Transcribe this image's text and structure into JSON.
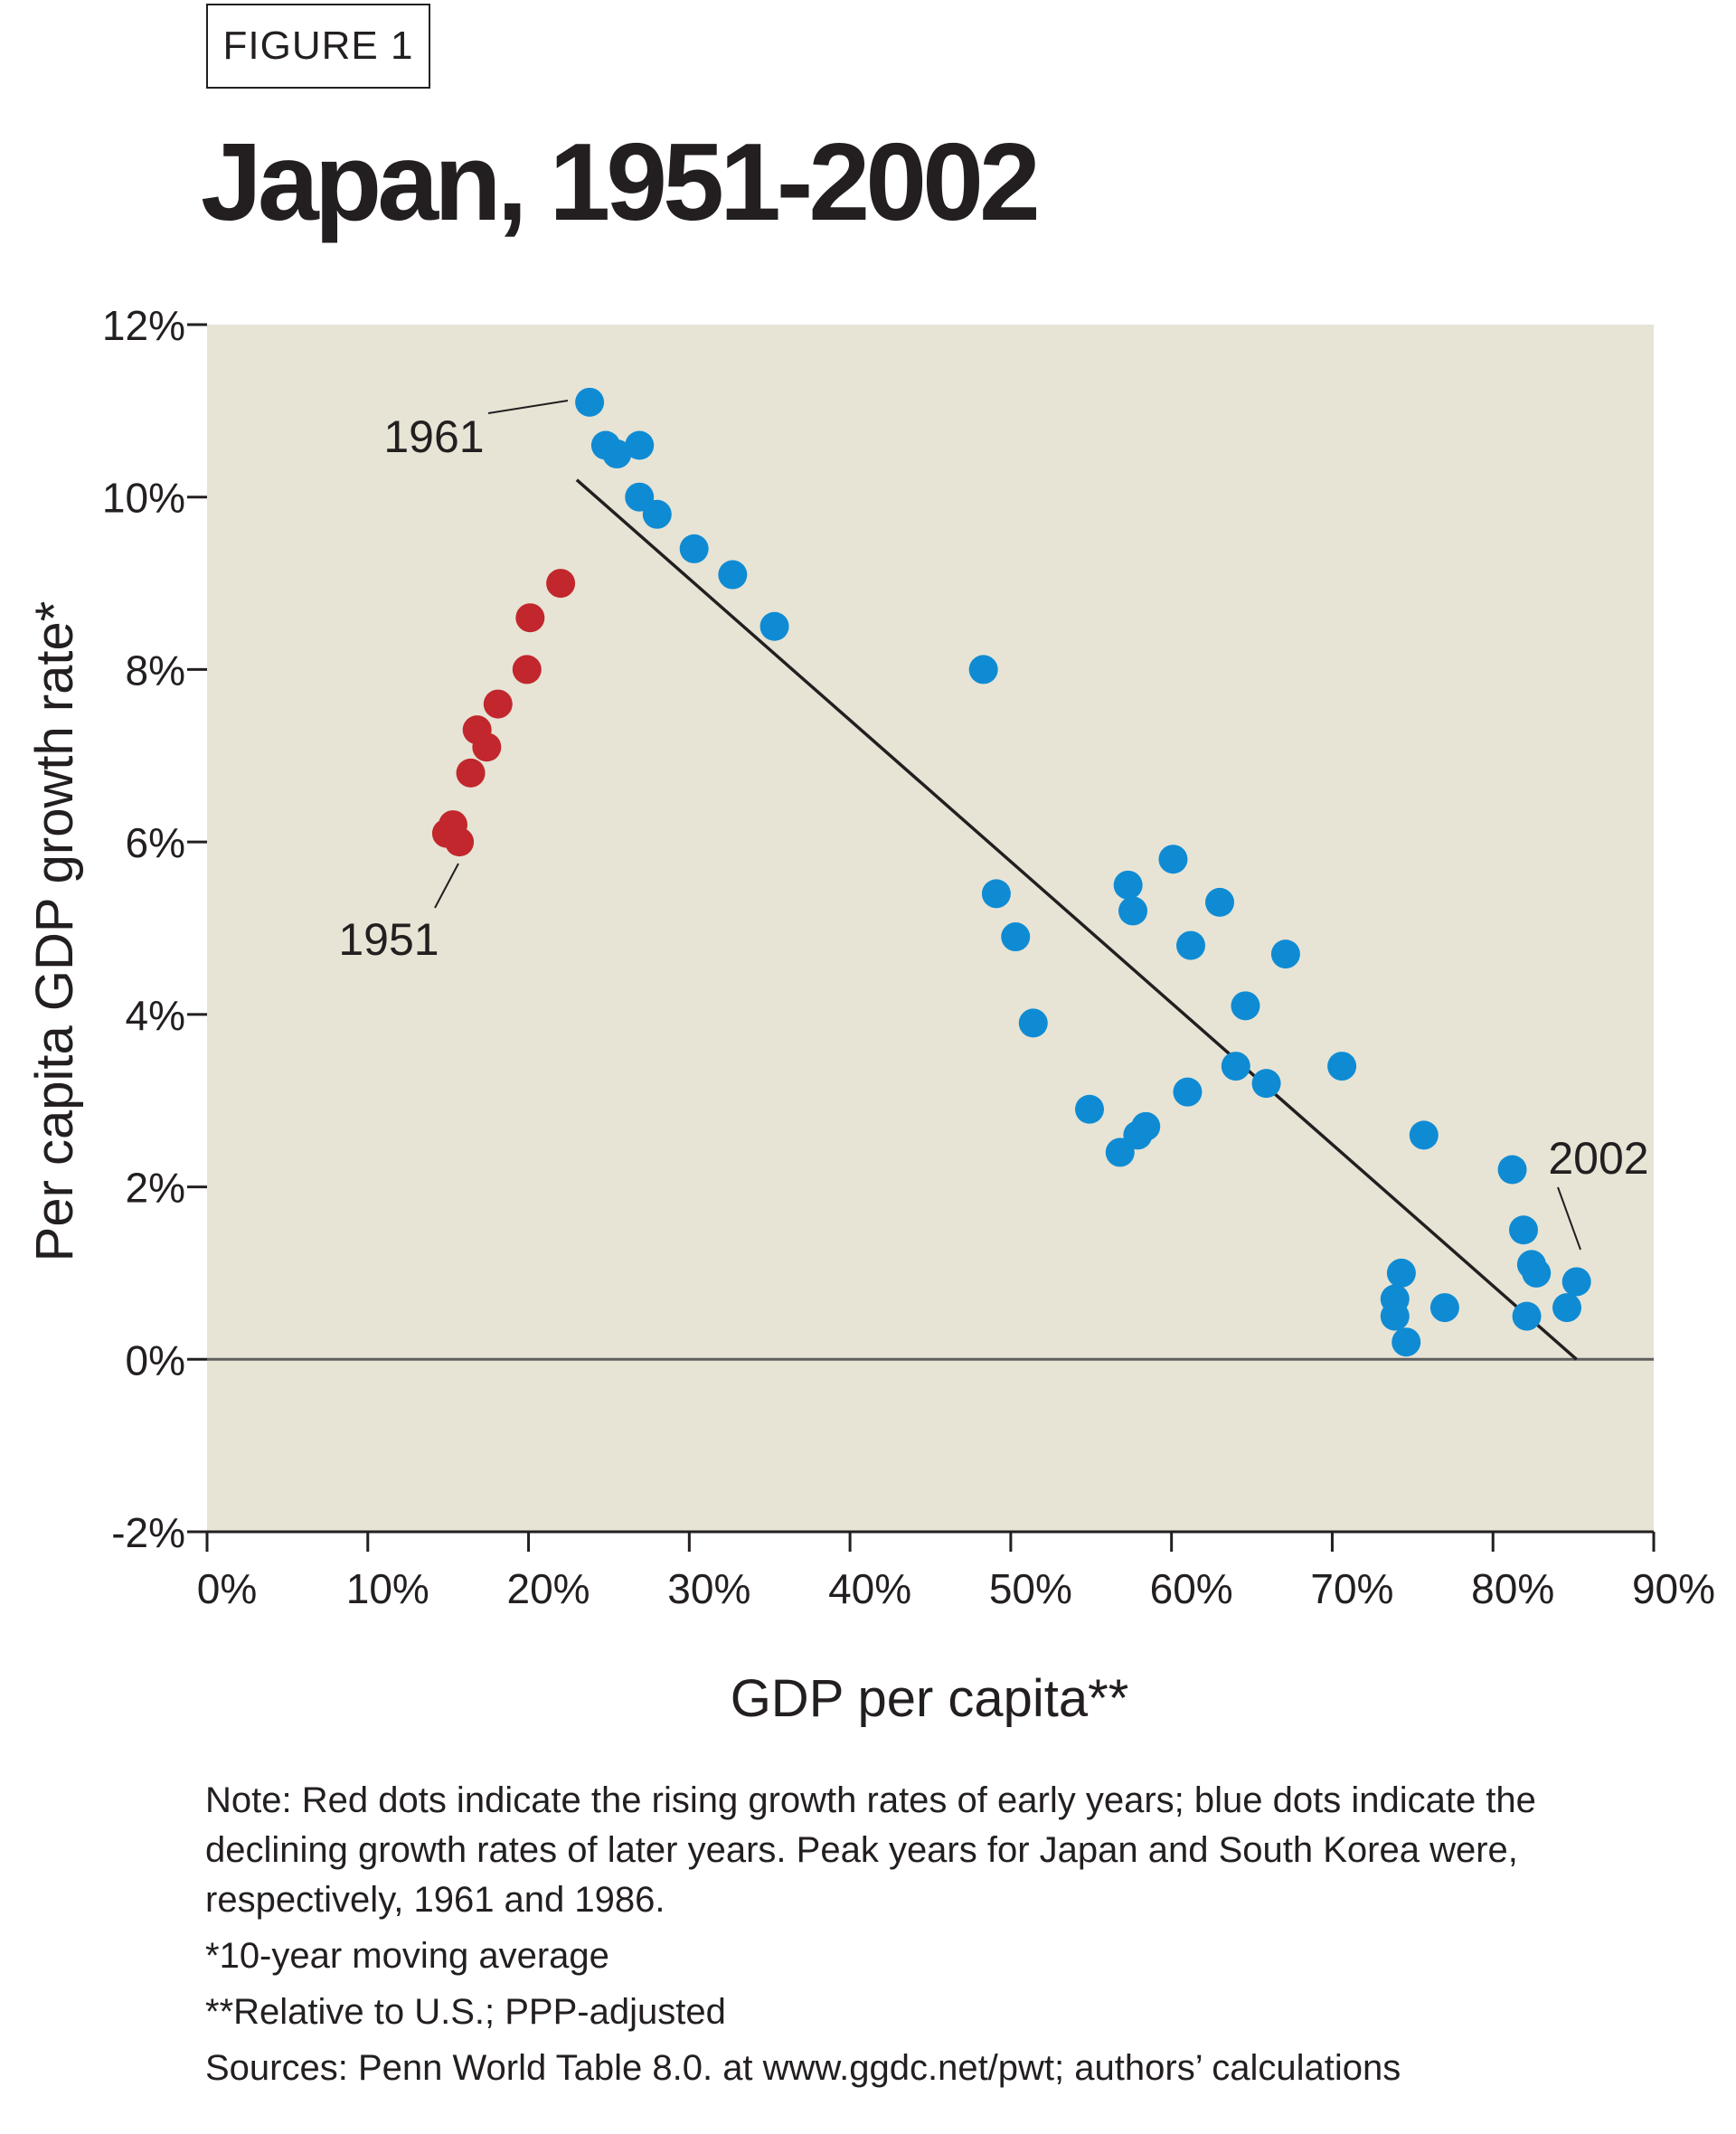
{
  "figure_label": "FIGURE 1",
  "chart_data": {
    "type": "scatter",
    "title": "Japan, 1951-2002",
    "xlabel": "GDP per capita**",
    "ylabel": "Per capita GDP growth rate*",
    "xlim": [
      0,
      90
    ],
    "ylim": [
      -2,
      12
    ],
    "x_ticks": [
      "0%",
      "10%",
      "20%",
      "30%",
      "40%",
      "50%",
      "60%",
      "70%",
      "80%",
      "90%"
    ],
    "y_ticks": [
      "-2%",
      "0%",
      "2%",
      "4%",
      "6%",
      "8%",
      "10%",
      "12%"
    ],
    "grid": false,
    "series": [
      {
        "color": "#c1272d",
        "points": [
          [
            14.9,
            6.1
          ],
          [
            15.3,
            6.2
          ],
          [
            15.7,
            6.0
          ],
          [
            16.4,
            6.8
          ],
          [
            16.8,
            7.3
          ],
          [
            17.4,
            7.1
          ],
          [
            18.1,
            7.6
          ],
          [
            19.9,
            8.0
          ],
          [
            20.1,
            8.6
          ],
          [
            22.0,
            9.0
          ]
        ]
      },
      {
        "color": "#0f8bd4",
        "points": [
          [
            23.8,
            11.1
          ],
          [
            24.8,
            10.6
          ],
          [
            25.5,
            10.5
          ],
          [
            26.9,
            10.6
          ],
          [
            26.9,
            10.0
          ],
          [
            28.0,
            9.8
          ],
          [
            30.3,
            9.4
          ],
          [
            32.7,
            9.1
          ],
          [
            35.3,
            8.5
          ],
          [
            48.3,
            8.0
          ],
          [
            49.1,
            5.4
          ],
          [
            50.3,
            4.9
          ],
          [
            51.4,
            3.9
          ],
          [
            54.9,
            2.9
          ],
          [
            56.8,
            2.4
          ],
          [
            57.3,
            5.5
          ],
          [
            57.6,
            5.2
          ],
          [
            57.9,
            2.6
          ],
          [
            58.4,
            2.7
          ],
          [
            60.1,
            5.8
          ],
          [
            61.0,
            3.1
          ],
          [
            61.2,
            4.8
          ],
          [
            63.0,
            5.3
          ],
          [
            64.0,
            3.4
          ],
          [
            64.6,
            4.1
          ],
          [
            65.9,
            3.2
          ],
          [
            67.1,
            4.7
          ],
          [
            70.6,
            3.4
          ],
          [
            73.9,
            0.7
          ],
          [
            73.9,
            0.5
          ],
          [
            74.3,
            1.0
          ],
          [
            74.6,
            0.2
          ],
          [
            75.7,
            2.6
          ],
          [
            77.0,
            0.6
          ],
          [
            81.2,
            2.2
          ],
          [
            81.9,
            1.5
          ],
          [
            82.1,
            0.5
          ],
          [
            82.4,
            1.1
          ],
          [
            82.7,
            1.0
          ],
          [
            84.6,
            0.6
          ],
          [
            85.2,
            0.9
          ]
        ]
      }
    ],
    "trend_line": [
      [
        23.0,
        10.2
      ],
      [
        85.2,
        0.0
      ]
    ],
    "reference_line_y": 0,
    "annotations": [
      {
        "text": "1961",
        "x": 23.8,
        "y": 11.1
      },
      {
        "text": "1951",
        "x": 15.3,
        "y": 6.2
      },
      {
        "text": "2002",
        "x": 85.2,
        "y": 0.9
      }
    ],
    "colors": {
      "plot_background": "#e7e4d5",
      "axis": "#231f20",
      "zero_line": "#5f5f5f"
    }
  },
  "notes": {
    "note": "Note: Red dots indicate the rising growth rates of early years; blue dots indicate the declining growth rates of later years. Peak years for Japan and South Korea were, respectively, 1961 and 1986.",
    "footnote_1": "*10-year moving average",
    "footnote_2": "**Relative to U.S.; PPP-adjusted",
    "sources": "Sources: Penn World Table 8.0. at www.ggdc.net/pwt; authors’ calculations"
  }
}
